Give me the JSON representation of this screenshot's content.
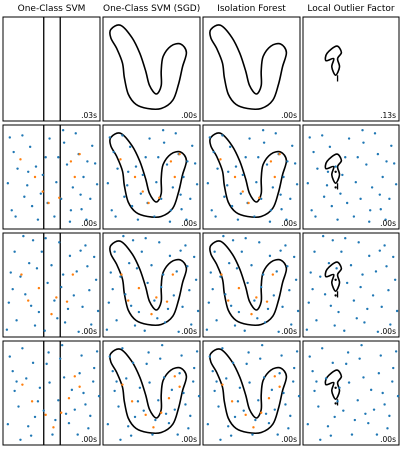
{
  "columns": [
    {
      "title": "One-Class SVM"
    },
    {
      "title": "One-Class SVM (SGD)"
    },
    {
      "title": "Isolation Forest"
    },
    {
      "title": "Local Outlier Factor"
    }
  ],
  "timings": [
    [
      ".03s",
      ".00s",
      ".00s",
      ".13s"
    ],
    [
      ".00s",
      ".00s",
      ".00s",
      ".00s"
    ],
    [
      ".00s",
      ".00s",
      ".00s",
      ".00s"
    ],
    [
      ".00s",
      ".00s",
      ".00s",
      ".00s"
    ]
  ],
  "colors": {
    "inlier": "#1f77b4",
    "outlier": "#ff7f0e",
    "boundary": "#000000"
  },
  "chart_data": {
    "type": "scatter",
    "grid": false,
    "legend": "none",
    "xlim": [
      0,
      1
    ],
    "ylim": [
      0,
      1
    ],
    "rows": [
      {
        "inliers": [],
        "outliers": [],
        "cores": []
      },
      {
        "inliers": [
          [
            0.09,
            0.18
          ],
          [
            0.41,
            0.52
          ],
          [
            0.63,
            0.83
          ],
          [
            0.95,
            0.63
          ],
          [
            0.83,
            0.5
          ],
          [
            0.28,
            0.79
          ],
          [
            0.7,
            0.18
          ],
          [
            0.9,
            0.29
          ],
          [
            0.15,
            0.58
          ],
          [
            0.55,
            0.45
          ],
          [
            0.36,
            0.09
          ],
          [
            0.78,
            0.72
          ],
          [
            0.22,
            0.31
          ],
          [
            0.66,
            0.62
          ],
          [
            0.48,
            0.87
          ],
          [
            0.86,
            0.09
          ],
          [
            0.11,
            0.74
          ],
          [
            0.72,
            0.4
          ],
          [
            0.3,
            0.22
          ],
          [
            0.6,
            0.29
          ],
          [
            0.92,
            0.8
          ],
          [
            0.05,
            0.44
          ],
          [
            0.44,
            0.69
          ],
          [
            0.81,
            0.19
          ],
          [
            0.26,
            0.55
          ],
          [
            0.53,
            0.12
          ],
          [
            0.75,
            0.92
          ],
          [
            0.2,
            0.9
          ],
          [
            0.39,
            0.34
          ],
          [
            0.97,
            0.43
          ],
          [
            0.13,
            0.12
          ],
          [
            0.57,
            0.69
          ],
          [
            0.69,
            0.07
          ],
          [
            0.34,
            0.6
          ],
          [
            0.87,
            0.65
          ],
          [
            0.46,
            0.25
          ],
          [
            0.07,
            0.88
          ],
          [
            0.8,
            0.33
          ],
          [
            0.25,
            0.42
          ],
          [
            0.62,
            0.95
          ]
        ],
        "outliers": [
          [
            0.18,
            0.67
          ],
          [
            0.33,
            0.5
          ],
          [
            0.41,
            0.36
          ],
          [
            0.47,
            0.25
          ],
          [
            0.58,
            0.3
          ],
          [
            0.7,
            0.65
          ],
          [
            0.74,
            0.5
          ],
          [
            0.79,
            0.72
          ]
        ],
        "cores": [
          [
            0.34,
            0.55
          ],
          [
            0.34,
            0.4
          ]
        ]
      },
      {
        "inliers": [
          [
            0.12,
            0.82
          ],
          [
            0.37,
            0.24
          ],
          [
            0.58,
            0.91
          ],
          [
            0.89,
            0.45
          ],
          [
            0.76,
            0.63
          ],
          [
            0.23,
            0.41
          ],
          [
            0.64,
            0.14
          ],
          [
            0.94,
            0.77
          ],
          [
            0.18,
            0.58
          ],
          [
            0.5,
            0.69
          ],
          [
            0.31,
            0.93
          ],
          [
            0.82,
            0.29
          ],
          [
            0.06,
            0.33
          ],
          [
            0.6,
            0.48
          ],
          [
            0.43,
            0.06
          ],
          [
            0.91,
            0.12
          ],
          [
            0.27,
            0.71
          ],
          [
            0.69,
            0.78
          ],
          [
            0.14,
            0.16
          ],
          [
            0.53,
            0.35
          ],
          [
            0.85,
            0.88
          ],
          [
            0.08,
            0.62
          ],
          [
            0.46,
            0.52
          ],
          [
            0.78,
            0.05
          ],
          [
            0.33,
            0.11
          ],
          [
            0.67,
            0.27
          ],
          [
            0.96,
            0.55
          ],
          [
            0.21,
            0.97
          ],
          [
            0.4,
            0.82
          ],
          [
            0.73,
            0.4
          ],
          [
            0.1,
            0.46
          ],
          [
            0.56,
            0.18
          ],
          [
            0.87,
            0.68
          ],
          [
            0.29,
            0.3
          ],
          [
            0.62,
            0.6
          ],
          [
            0.44,
            0.95
          ],
          [
            0.04,
            0.07
          ],
          [
            0.8,
            0.83
          ],
          [
            0.35,
            0.66
          ],
          [
            0.98,
            0.25
          ]
        ],
        "outliers": [
          [
            0.19,
            0.6
          ],
          [
            0.26,
            0.35
          ],
          [
            0.37,
            0.47
          ],
          [
            0.5,
            0.22
          ],
          [
            0.55,
            0.38
          ],
          [
            0.66,
            0.34
          ],
          [
            0.72,
            0.6
          ]
        ],
        "cores": [
          [
            0.34,
            0.55
          ],
          [
            0.34,
            0.4
          ]
        ]
      },
      {
        "inliers": [
          [
            0.16,
            0.37
          ],
          [
            0.45,
            0.78
          ],
          [
            0.68,
            0.21
          ],
          [
            0.93,
            0.61
          ],
          [
            0.29,
            0.09
          ],
          [
            0.57,
            0.43
          ],
          [
            0.81,
            0.86
          ],
          [
            0.1,
            0.71
          ],
          [
            0.38,
            0.55
          ],
          [
            0.74,
            0.34
          ],
          [
            0.2,
            0.93
          ],
          [
            0.63,
            0.65
          ],
          [
            0.88,
            0.16
          ],
          [
            0.05,
            0.2
          ],
          [
            0.51,
            0.1
          ],
          [
            0.97,
            0.9
          ],
          [
            0.33,
            0.27
          ],
          [
            0.71,
            0.53
          ],
          [
            0.24,
            0.64
          ],
          [
            0.59,
            0.83
          ],
          [
            0.85,
            0.39
          ],
          [
            0.12,
            0.52
          ],
          [
            0.42,
            0.33
          ],
          [
            0.77,
            0.1
          ],
          [
            0.31,
            0.79
          ],
          [
            0.65,
            0.3
          ],
          [
            0.94,
            0.74
          ],
          [
            0.18,
            0.05
          ],
          [
            0.48,
            0.6
          ],
          [
            0.83,
            0.5
          ],
          [
            0.07,
            0.85
          ],
          [
            0.54,
            0.24
          ],
          [
            0.9,
            0.28
          ],
          [
            0.36,
            0.42
          ],
          [
            0.61,
            0.96
          ],
          [
            0.26,
            0.18
          ],
          [
            0.79,
            0.69
          ],
          [
            0.14,
            0.61
          ],
          [
            0.47,
            0.89
          ],
          [
            0.99,
            0.47
          ]
        ],
        "outliers": [
          [
            0.2,
            0.58
          ],
          [
            0.3,
            0.42
          ],
          [
            0.44,
            0.29
          ],
          [
            0.52,
            0.17
          ],
          [
            0.6,
            0.31
          ],
          [
            0.68,
            0.45
          ],
          [
            0.74,
            0.66
          ],
          [
            0.79,
            0.56
          ]
        ],
        "cores": [
          [
            0.34,
            0.55
          ],
          [
            0.34,
            0.4
          ]
        ]
      }
    ]
  }
}
